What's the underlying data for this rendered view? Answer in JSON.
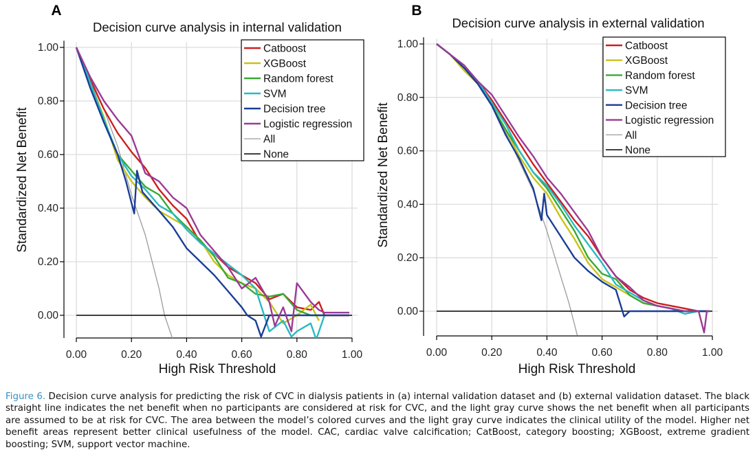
{
  "chart_data": [
    {
      "type": "line",
      "panel_label": "A",
      "title": "Decision curve analysis in internal validation",
      "xlabel": "High Risk Threshold",
      "ylabel": "Standardized Net Benefit",
      "xlim": [
        0,
        1
      ],
      "ylim": [
        -0.09,
        1.02
      ],
      "xticks": [
        "0.00",
        "0.20",
        "0.40",
        "0.60",
        "0.80",
        "1.00"
      ],
      "yticks": [
        "0.00",
        "0.20",
        "0.40",
        "0.60",
        "0.80",
        "1.00"
      ],
      "grid": true,
      "legend_position": "top-right",
      "series": [
        {
          "name": "Catboost",
          "color": "#cc1f1f",
          "x": [
            0,
            0.05,
            0.1,
            0.15,
            0.2,
            0.25,
            0.3,
            0.35,
            0.4,
            0.45,
            0.5,
            0.55,
            0.6,
            0.65,
            0.7,
            0.75,
            0.8,
            0.85,
            0.88,
            0.9,
            0.95,
            0.99
          ],
          "y": [
            1.0,
            0.88,
            0.77,
            0.68,
            0.61,
            0.55,
            0.47,
            0.41,
            0.36,
            0.27,
            0.23,
            0.18,
            0.15,
            0.12,
            0.06,
            0.08,
            0.03,
            0.02,
            0.05,
            0.0,
            0.0,
            0.0
          ]
        },
        {
          "name": "XGBoost",
          "color": "#c9c21a",
          "x": [
            0,
            0.05,
            0.1,
            0.15,
            0.2,
            0.25,
            0.3,
            0.35,
            0.4,
            0.45,
            0.5,
            0.55,
            0.6,
            0.65,
            0.7,
            0.75,
            0.8,
            0.85,
            0.88
          ],
          "y": [
            1.0,
            0.87,
            0.74,
            0.58,
            0.5,
            0.44,
            0.39,
            0.36,
            0.33,
            0.28,
            0.2,
            0.15,
            0.12,
            0.1,
            0.05,
            -0.03,
            0.0,
            0.04,
            -0.02
          ]
        },
        {
          "name": "Random forest",
          "color": "#3aa835",
          "x": [
            0,
            0.05,
            0.1,
            0.15,
            0.2,
            0.25,
            0.3,
            0.35,
            0.4,
            0.45,
            0.5,
            0.55,
            0.6,
            0.65,
            0.7,
            0.75,
            0.8,
            0.85,
            0.9
          ],
          "y": [
            1.0,
            0.87,
            0.73,
            0.6,
            0.54,
            0.48,
            0.45,
            0.38,
            0.33,
            0.28,
            0.22,
            0.14,
            0.12,
            0.08,
            0.07,
            0.08,
            0.02,
            0.0,
            0.0
          ]
        },
        {
          "name": "SVM",
          "color": "#27b9c4",
          "x": [
            0,
            0.05,
            0.1,
            0.15,
            0.2,
            0.25,
            0.3,
            0.35,
            0.4,
            0.45,
            0.5,
            0.55,
            0.6,
            0.65,
            0.7,
            0.75,
            0.78,
            0.8,
            0.85,
            0.87,
            0.9
          ],
          "y": [
            1.0,
            0.87,
            0.73,
            0.6,
            0.52,
            0.47,
            0.41,
            0.38,
            0.32,
            0.27,
            0.23,
            0.19,
            0.15,
            0.1,
            -0.06,
            -0.02,
            -0.08,
            -0.06,
            -0.03,
            -0.09,
            0.0
          ]
        },
        {
          "name": "Decision tree",
          "color": "#1a3d95",
          "x": [
            0,
            0.05,
            0.1,
            0.15,
            0.18,
            0.21,
            0.22,
            0.24,
            0.3,
            0.35,
            0.4,
            0.45,
            0.5,
            0.55,
            0.6,
            0.62,
            0.65,
            0.67,
            0.7,
            0.75,
            0.8,
            0.85,
            0.9,
            0.95,
            0.99
          ],
          "y": [
            1.0,
            0.85,
            0.72,
            0.6,
            0.5,
            0.38,
            0.54,
            0.46,
            0.39,
            0.33,
            0.25,
            0.2,
            0.15,
            0.09,
            0.03,
            0.0,
            -0.02,
            -0.08,
            0.0,
            0.0,
            0.0,
            0.0,
            0.0,
            0.0,
            0.0
          ]
        },
        {
          "name": "Logistic regression",
          "color": "#9b3a95",
          "x": [
            0,
            0.05,
            0.1,
            0.15,
            0.2,
            0.25,
            0.3,
            0.35,
            0.4,
            0.45,
            0.5,
            0.55,
            0.6,
            0.65,
            0.7,
            0.72,
            0.75,
            0.78,
            0.8,
            0.85,
            0.88,
            0.9,
            0.95,
            0.99
          ],
          "y": [
            1.0,
            0.89,
            0.8,
            0.73,
            0.67,
            0.53,
            0.5,
            0.44,
            0.4,
            0.3,
            0.24,
            0.18,
            0.1,
            0.14,
            0.05,
            -0.04,
            0.03,
            -0.06,
            0.12,
            0.05,
            0.02,
            0.01,
            0.01,
            0.01
          ]
        },
        {
          "name": "All",
          "color": "#9a9a9a",
          "x": [
            0,
            0.05,
            0.1,
            0.15,
            0.2,
            0.25,
            0.3,
            0.32,
            0.34,
            0.35
          ],
          "y": [
            1.0,
            0.89,
            0.77,
            0.63,
            0.45,
            0.3,
            0.1,
            0.0,
            -0.06,
            -0.09
          ]
        },
        {
          "name": "None",
          "color": "#000000",
          "x": [
            0,
            1
          ],
          "y": [
            0,
            0
          ]
        }
      ]
    },
    {
      "type": "line",
      "panel_label": "B",
      "title": "Decision curve analysis in external validation",
      "xlabel": "High Risk Threshold",
      "ylabel": "Standardized Net Benefit",
      "xlim": [
        0,
        1
      ],
      "ylim": [
        -0.09,
        1.02
      ],
      "xticks": [
        "0.00",
        "0.20",
        "0.40",
        "0.60",
        "0.80",
        "1.00"
      ],
      "yticks": [
        "0.00",
        "0.20",
        "0.40",
        "0.60",
        "0.80",
        "1.00"
      ],
      "grid": true,
      "legend_position": "top-right",
      "series": [
        {
          "name": "Catboost",
          "color": "#cc1f1f",
          "x": [
            0,
            0.05,
            0.1,
            0.15,
            0.2,
            0.25,
            0.3,
            0.35,
            0.4,
            0.45,
            0.5,
            0.55,
            0.6,
            0.65,
            0.7,
            0.75,
            0.8,
            0.85,
            0.9,
            0.95,
            0.99
          ],
          "y": [
            1.0,
            0.96,
            0.91,
            0.86,
            0.79,
            0.71,
            0.63,
            0.55,
            0.48,
            0.41,
            0.34,
            0.28,
            0.2,
            0.13,
            0.08,
            0.05,
            0.03,
            0.02,
            0.01,
            0.0,
            0.0
          ]
        },
        {
          "name": "XGBoost",
          "color": "#c9c21a",
          "x": [
            0,
            0.05,
            0.1,
            0.15,
            0.2,
            0.25,
            0.3,
            0.35,
            0.4,
            0.45,
            0.5,
            0.55,
            0.6,
            0.65,
            0.7,
            0.75,
            0.8,
            0.85,
            0.9,
            0.95
          ],
          "y": [
            1.0,
            0.96,
            0.9,
            0.85,
            0.77,
            0.68,
            0.58,
            0.5,
            0.44,
            0.35,
            0.27,
            0.18,
            0.12,
            0.09,
            0.06,
            0.03,
            0.02,
            0.01,
            0.0,
            0.0
          ]
        },
        {
          "name": "Random forest",
          "color": "#3aa835",
          "x": [
            0,
            0.05,
            0.1,
            0.15,
            0.2,
            0.25,
            0.3,
            0.35,
            0.4,
            0.45,
            0.5,
            0.55,
            0.6,
            0.65,
            0.7,
            0.75,
            0.8,
            0.85,
            0.9,
            0.95
          ],
          "y": [
            1.0,
            0.96,
            0.91,
            0.85,
            0.77,
            0.68,
            0.6,
            0.52,
            0.46,
            0.38,
            0.3,
            0.2,
            0.14,
            0.12,
            0.06,
            0.03,
            0.02,
            0.01,
            0.0,
            0.0
          ]
        },
        {
          "name": "SVM",
          "color": "#27b9c4",
          "x": [
            0,
            0.05,
            0.1,
            0.15,
            0.2,
            0.25,
            0.3,
            0.35,
            0.4,
            0.45,
            0.5,
            0.55,
            0.6,
            0.65,
            0.7,
            0.75,
            0.8,
            0.85,
            0.9,
            0.95,
            0.99
          ],
          "y": [
            1.0,
            0.96,
            0.91,
            0.86,
            0.78,
            0.7,
            0.6,
            0.52,
            0.47,
            0.4,
            0.32,
            0.25,
            0.18,
            0.1,
            0.07,
            0.04,
            0.02,
            0.01,
            -0.01,
            0.0,
            0.0
          ]
        },
        {
          "name": "Decision tree",
          "color": "#1a3d95",
          "x": [
            0,
            0.05,
            0.1,
            0.15,
            0.2,
            0.25,
            0.3,
            0.35,
            0.38,
            0.39,
            0.4,
            0.45,
            0.5,
            0.55,
            0.6,
            0.65,
            0.68,
            0.7,
            0.75,
            0.8,
            0.85,
            0.9,
            0.95,
            0.99
          ],
          "y": [
            1.0,
            0.96,
            0.91,
            0.85,
            0.77,
            0.66,
            0.57,
            0.46,
            0.34,
            0.44,
            0.36,
            0.28,
            0.2,
            0.15,
            0.11,
            0.08,
            -0.02,
            0.0,
            0.0,
            0.0,
            0.0,
            0.0,
            0.0,
            0.0
          ]
        },
        {
          "name": "Logistic regression",
          "color": "#9b3a95",
          "x": [
            0,
            0.05,
            0.1,
            0.15,
            0.2,
            0.25,
            0.3,
            0.35,
            0.4,
            0.45,
            0.5,
            0.55,
            0.6,
            0.65,
            0.7,
            0.75,
            0.8,
            0.85,
            0.9,
            0.95,
            0.97,
            0.98,
            0.99
          ],
          "y": [
            1.0,
            0.96,
            0.92,
            0.86,
            0.81,
            0.73,
            0.65,
            0.58,
            0.5,
            0.44,
            0.37,
            0.3,
            0.2,
            0.13,
            0.09,
            0.04,
            0.02,
            0.01,
            0.0,
            0.0,
            -0.08,
            0.0,
            0.0
          ]
        },
        {
          "name": "All",
          "color": "#9a9a9a",
          "x": [
            0,
            0.05,
            0.1,
            0.15,
            0.2,
            0.25,
            0.3,
            0.35,
            0.4,
            0.45,
            0.48,
            0.5,
            0.51
          ],
          "y": [
            1.0,
            0.96,
            0.91,
            0.85,
            0.77,
            0.67,
            0.56,
            0.45,
            0.3,
            0.13,
            0.03,
            -0.05,
            -0.09
          ]
        },
        {
          "name": "None",
          "color": "#000000",
          "x": [
            0,
            1
          ],
          "y": [
            0,
            0
          ]
        }
      ]
    }
  ],
  "caption": {
    "label": "Figure 6.",
    "text": " Decision curve analysis for predicting the risk of CVC in dialysis patients in (a) internal validation dataset and (b) external validation dataset. The black straight line indicates the net benefit when no participants are considered at risk for CVC, and the light gray curve shows the net benefit when all participants are assumed to be at risk for CVC. The area between the model’s colored curves and the light gray curve indicates the clinical utility of the model. Higher net benefit areas represent better clinical usefulness of the model. CAC, cardiac valve calcification; CatBoost, category boosting; XGBoost, extreme gradient boosting; SVM, support vector machine."
  }
}
